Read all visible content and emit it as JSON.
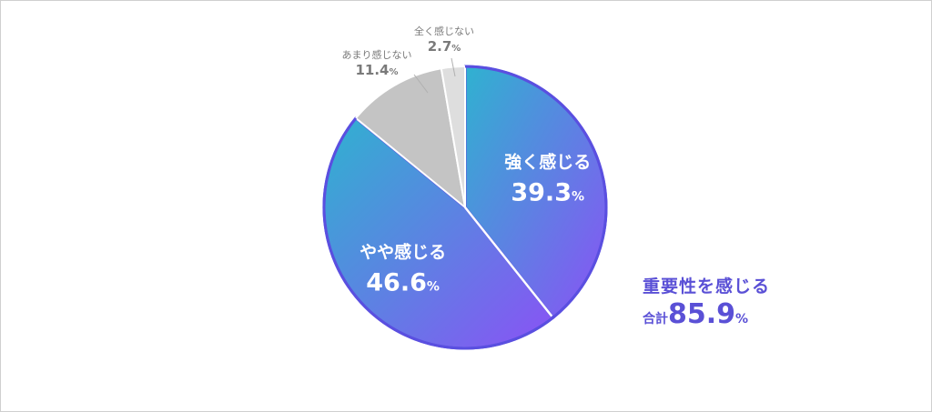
{
  "chart_data": {
    "type": "pie",
    "slices": [
      {
        "label": "強く感じる",
        "value": 39.3,
        "value_text": "39.3",
        "unit": "%",
        "label_position": "inside"
      },
      {
        "label": "やや感じる",
        "value": 46.6,
        "value_text": "46.6",
        "unit": "%",
        "label_position": "inside"
      },
      {
        "label": "あまり感じない",
        "value": 11.4,
        "value_text": "11.4",
        "unit": "%",
        "label_position": "outside"
      },
      {
        "label": "全く感じない",
        "value": 2.7,
        "value_text": "2.7",
        "unit": "%",
        "label_position": "outside"
      }
    ],
    "start_angle_deg": 0,
    "direction": "clockwise",
    "colors": {
      "gradient_start": "#2fb2d0",
      "gradient_end": "#8a52f5",
      "gradient_border": "#5a4fe0",
      "gray": "#c4c4c4",
      "light_gray": "#dedede",
      "separator": "#ffffff"
    }
  },
  "summary": {
    "heading": "重要性を感じる",
    "total_prefix": "合計",
    "total_value": "85.9",
    "total_unit": "%"
  }
}
